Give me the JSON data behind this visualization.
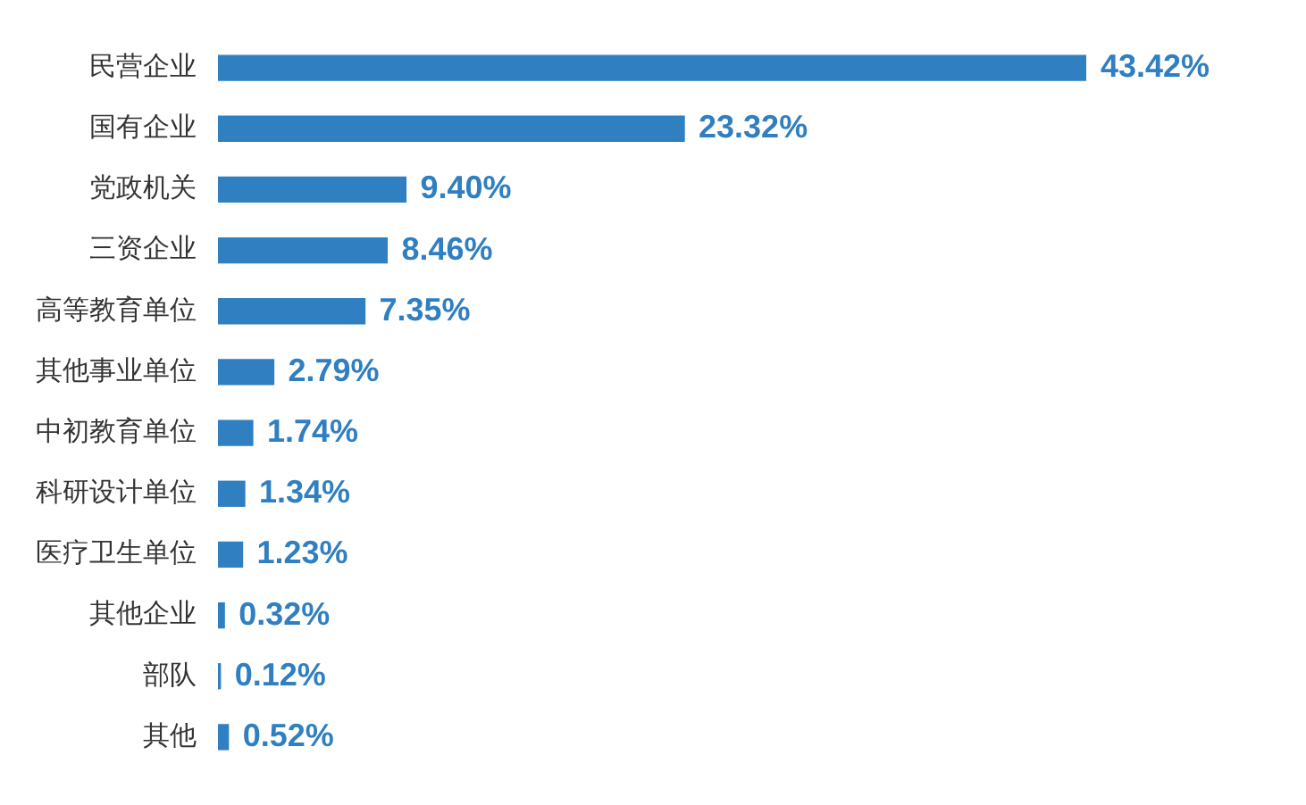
{
  "chart_data": {
    "type": "bar",
    "orientation": "horizontal",
    "categories": [
      "民营企业",
      "国有企业",
      "党政机关",
      "三资企业",
      "高等教育单位",
      "其他事业单位",
      "中初教育单位",
      "科研设计单位",
      "医疗卫生单位",
      "其他企业",
      "部队",
      "其他"
    ],
    "values": [
      43.42,
      23.32,
      9.4,
      8.46,
      7.35,
      2.79,
      1.74,
      1.34,
      1.23,
      0.32,
      0.12,
      0.52
    ],
    "value_labels": [
      "43.42%",
      "23.32%",
      "9.40%",
      "8.46%",
      "7.35%",
      "2.79%",
      "1.74%",
      "1.34%",
      "1.23%",
      "0.32%",
      "0.12%",
      "0.52%"
    ],
    "color": "#2f7fc1",
    "grid": false,
    "legend": false
  }
}
